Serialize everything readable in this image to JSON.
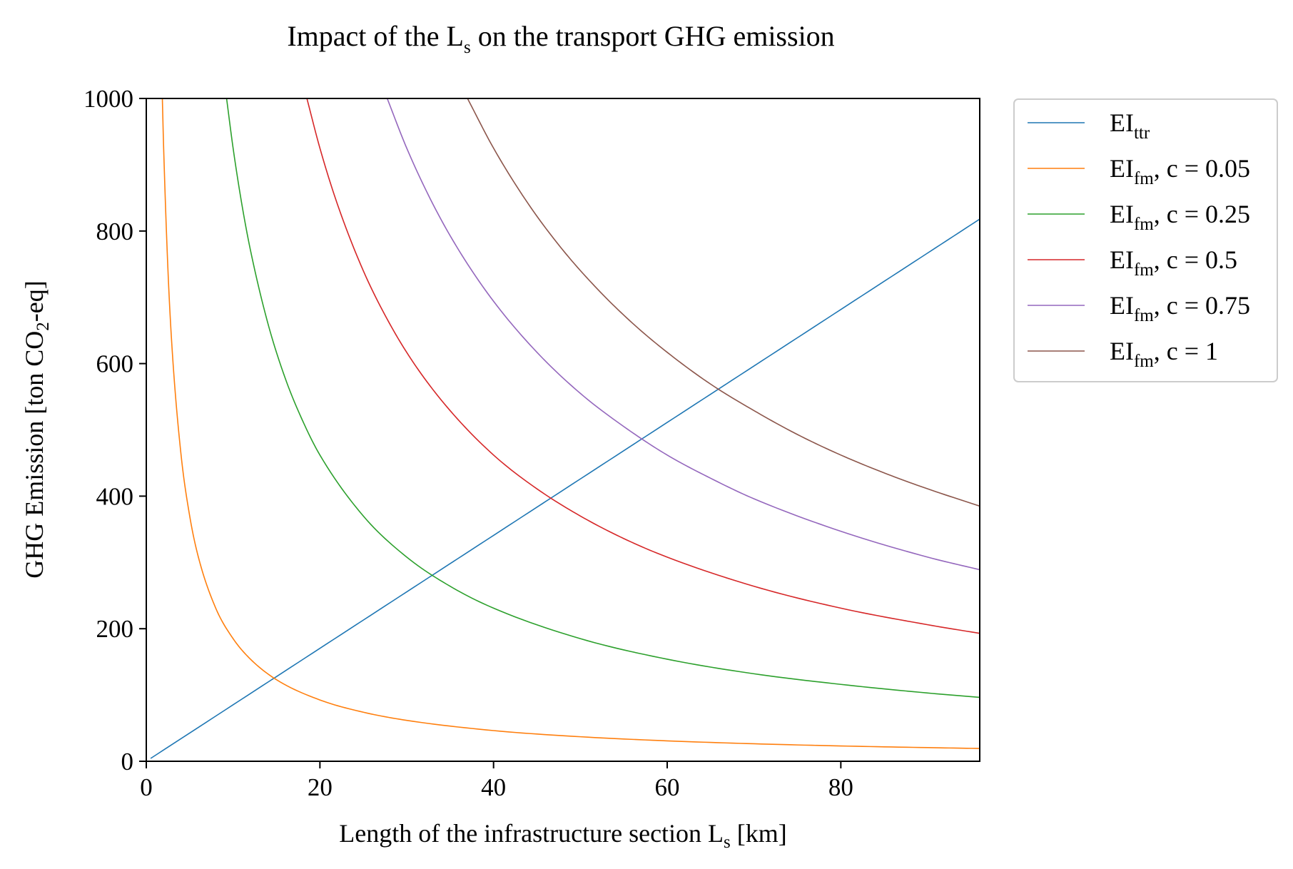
{
  "chart_data": {
    "type": "line",
    "title": "Impact of the L_s on the transport GHG emission",
    "title_parts": {
      "pre": "Impact of the L",
      "sub": "s",
      "post": " on the transport GHG emission"
    },
    "xlabel": "Length of the infrastructure section L_s [km]",
    "xlabel_parts": {
      "pre": "Length of the infrastructure section L",
      "sub": "s",
      "post": " [km]"
    },
    "ylabel": "GHG Emission [ton CO2-eq]",
    "ylabel_parts": {
      "pre": "GHG Emission [ton CO",
      "sub": "2",
      "post": "-eq]"
    },
    "xlim": [
      0,
      96
    ],
    "ylim": [
      0,
      1000
    ],
    "xticks": [
      0,
      20,
      40,
      60,
      80
    ],
    "yticks": [
      0,
      200,
      400,
      600,
      800,
      1000
    ],
    "grid": false,
    "legend_position": "outside upper right",
    "series": [
      {
        "name": "EI_ttr",
        "legend": {
          "pre": "EI",
          "sub": "ttr",
          "post": ""
        },
        "color": "#1f77b4",
        "x": [
          0.5,
          10,
          20,
          30,
          40,
          50,
          60,
          70,
          80,
          90,
          96
        ],
        "y": [
          4.3,
          85.2,
          170.4,
          255.6,
          340.8,
          426.0,
          511.2,
          596.4,
          681.6,
          766.8,
          818
        ]
      },
      {
        "name": "EI_fm, c = 0.05",
        "legend": {
          "pre": "EI",
          "sub": "fm",
          "post": ", c = 0.05"
        },
        "color": "#ff7f0e",
        "x": [
          1.85,
          2,
          2.5,
          3,
          4,
          5,
          6,
          8,
          10,
          12,
          15,
          20,
          25,
          30,
          40,
          50,
          60,
          70,
          80,
          90,
          96
        ],
        "y": [
          1000,
          925,
          740,
          617,
          463,
          370,
          308,
          231,
          185,
          154,
          123,
          92.5,
          74,
          61.7,
          46.3,
          37,
          30.8,
          26.4,
          23.1,
          20.6,
          19.3
        ]
      },
      {
        "name": "EI_fm, c = 0.25",
        "legend": {
          "pre": "EI",
          "sub": "fm",
          "post": ", c = 0.25"
        },
        "color": "#2ca02c",
        "x": [
          9.25,
          10,
          11,
          12,
          14,
          16,
          18,
          20,
          25,
          30,
          35,
          40,
          50,
          60,
          70,
          80,
          90,
          96
        ],
        "y": [
          1000,
          925,
          841,
          771,
          661,
          578,
          514,
          462,
          370,
          308,
          264,
          231,
          185,
          154,
          132,
          116,
          103,
          96.4
        ]
      },
      {
        "name": "EI_fm, c = 0.5",
        "legend": {
          "pre": "EI",
          "sub": "fm",
          "post": ", c = 0.5"
        },
        "color": "#d62728",
        "x": [
          18.5,
          20,
          22,
          25,
          28,
          31,
          35,
          40,
          45,
          50,
          55,
          60,
          70,
          80,
          90,
          96
        ],
        "y": [
          1000,
          925,
          841,
          740,
          661,
          597,
          529,
          462,
          411,
          370,
          336,
          308,
          264,
          231,
          206,
          193
        ]
      },
      {
        "name": "EI_fm, c = 0.75",
        "legend": {
          "pre": "EI",
          "sub": "fm",
          "post": ", c = 0.75"
        },
        "color": "#9467bd",
        "x": [
          27.75,
          30,
          33,
          36,
          40,
          45,
          50,
          55,
          60,
          65,
          70,
          80,
          90,
          96
        ],
        "y": [
          1000,
          925,
          841,
          771,
          694,
          617,
          555,
          505,
          462,
          427,
          396,
          347,
          308,
          289
        ]
      },
      {
        "name": "EI_fm, c = 1",
        "legend": {
          "pre": "EI",
          "sub": "fm",
          "post": ", c = 1"
        },
        "color": "#8c564b",
        "x": [
          37,
          40,
          44,
          48,
          52,
          56,
          60,
          65,
          70,
          75,
          80,
          85,
          90,
          96
        ],
        "y": [
          1000,
          925,
          841,
          771,
          712,
          661,
          617,
          569,
          529,
          493,
          462,
          435,
          411,
          385
        ]
      }
    ]
  }
}
